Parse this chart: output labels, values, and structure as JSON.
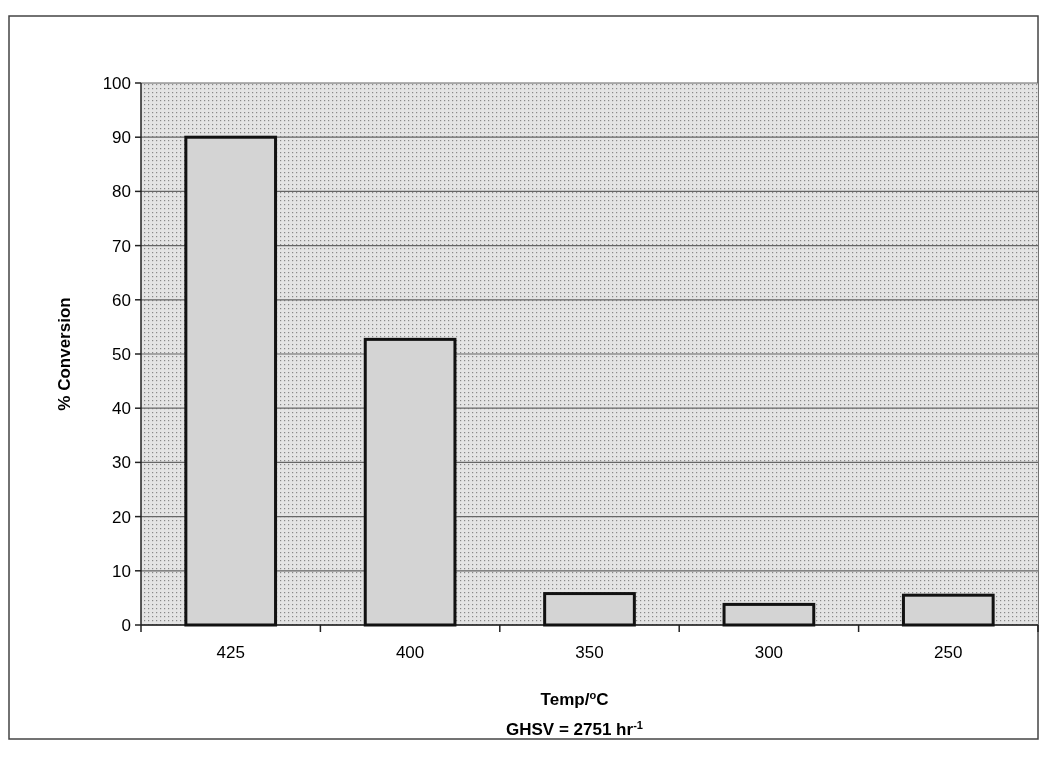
{
  "chart_data": {
    "type": "bar",
    "xlabel": "Temp/$^{o}$C",
    "ylabel": "% Conversion",
    "annotations": [
      "GHSV = 2751 hr$^{-1}$"
    ],
    "categories": [
      "425",
      "400",
      "350",
      "300",
      "250"
    ],
    "values": [
      90,
      52.7,
      5.8,
      3.8,
      5.5
    ],
    "color": "#d4d4d4",
    "ylim": [
      0,
      100
    ],
    "yticks": [
      0,
      10,
      20,
      30,
      40,
      50,
      60,
      70,
      80,
      90,
      100
    ],
    "grid": "y"
  }
}
